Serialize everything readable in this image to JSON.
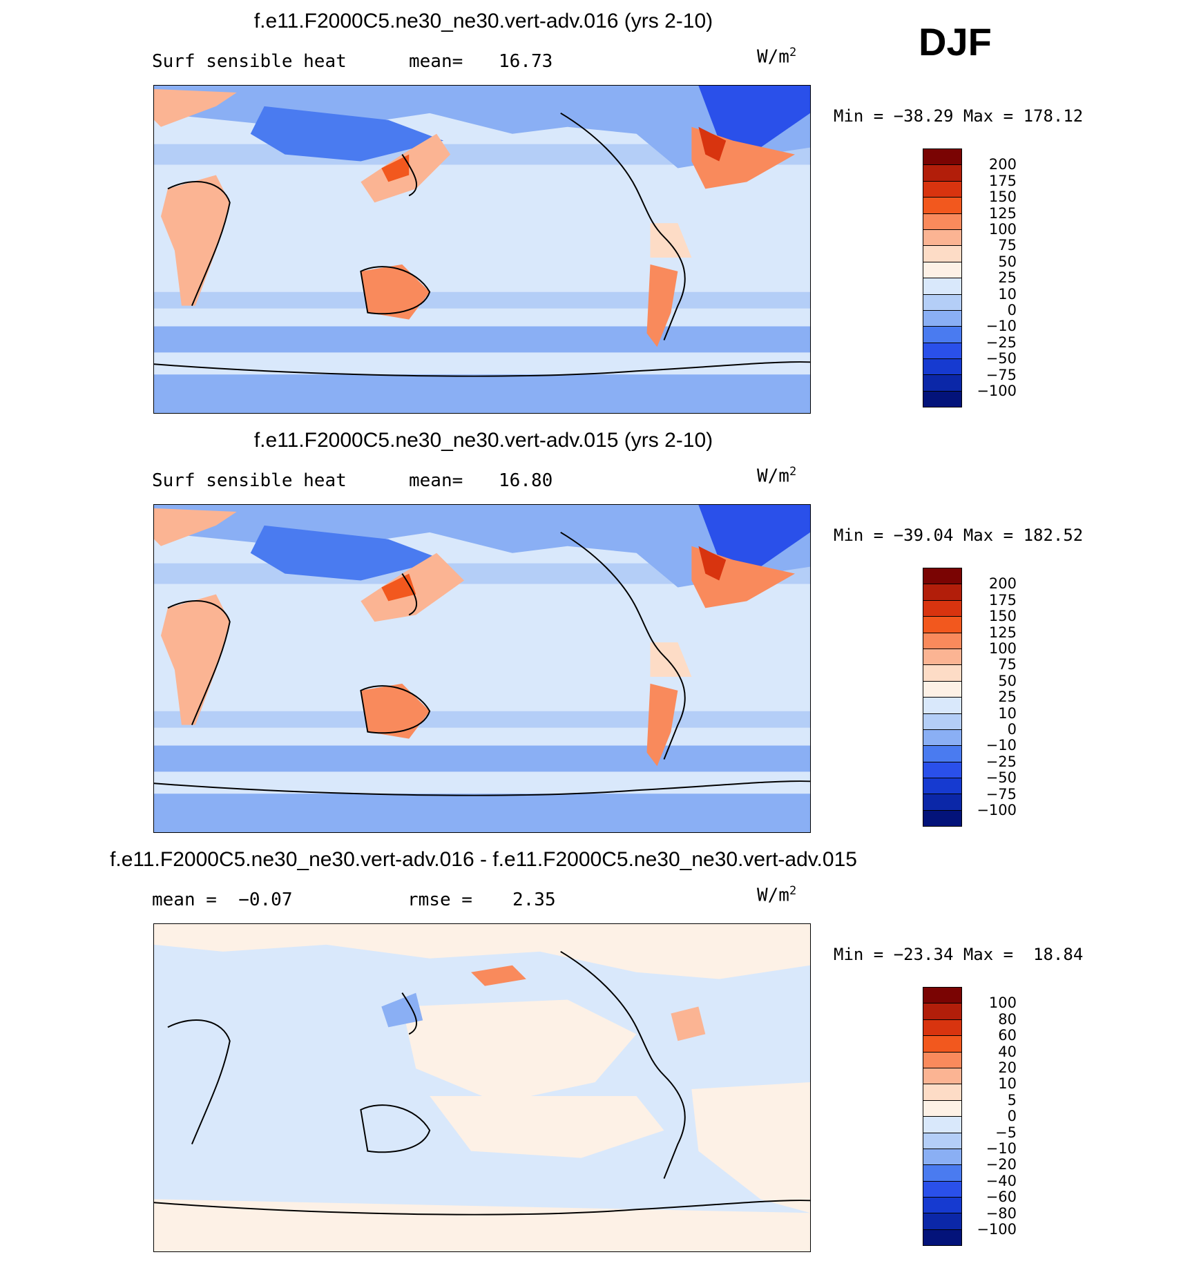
{
  "season": "DJF",
  "panels": [
    {
      "title": "f.e11.F2000C5.ne30_ne30.vert-adv.016 (yrs 2-10)",
      "left_label": "Surf sensible heat",
      "stat_label": "mean=",
      "stat_value": "16.73",
      "units": "W/m",
      "units_exp": "2",
      "min_label": "Min =",
      "min_value": "−38.29",
      "max_label": "Max =",
      "max_value": "178.12",
      "colorbar_levels": [
        "200",
        "175",
        "150",
        "125",
        "100",
        "75",
        "50",
        "25",
        "10",
        "0",
        "−10",
        "−25",
        "−50",
        "−75",
        "−100"
      ]
    },
    {
      "title": "f.e11.F2000C5.ne30_ne30.vert-adv.015 (yrs 2-10)",
      "left_label": "Surf sensible heat",
      "stat_label": "mean=",
      "stat_value": "16.80",
      "units": "W/m",
      "units_exp": "2",
      "min_label": "Min =",
      "min_value": "−39.04",
      "max_label": "Max =",
      "max_value": "182.52",
      "colorbar_levels": [
        "200",
        "175",
        "150",
        "125",
        "100",
        "75",
        "50",
        "25",
        "10",
        "0",
        "−10",
        "−25",
        "−50",
        "−75",
        "−100"
      ]
    },
    {
      "title": "f.e11.F2000C5.ne30_ne30.vert-adv.016 - f.e11.F2000C5.ne30_ne30.vert-adv.015",
      "left_label": "mean =  −0.07",
      "stat_label": "rmse =",
      "stat_value": "2.35",
      "units": "W/m",
      "units_exp": "2",
      "min_label": "Min =",
      "min_value": "−23.34",
      "max_label": "Max =",
      "max_value": "18.84",
      "colorbar_levels": [
        "100",
        "80",
        "60",
        "40",
        "20",
        "10",
        "5",
        "0",
        "−5",
        "−10",
        "−20",
        "−40",
        "−60",
        "−80",
        "−100"
      ]
    }
  ],
  "colors": [
    "#7a0403",
    "#b21e0a",
    "#d8340f",
    "#f2581e",
    "#f98a5c",
    "#fbb493",
    "#fddcc6",
    "#fdf1e6",
    "#d9e8fb",
    "#b4cef7",
    "#8aaff4",
    "#4a7bf0",
    "#2a50ea",
    "#163ad0",
    "#0b27a8",
    "#03137a"
  ]
}
